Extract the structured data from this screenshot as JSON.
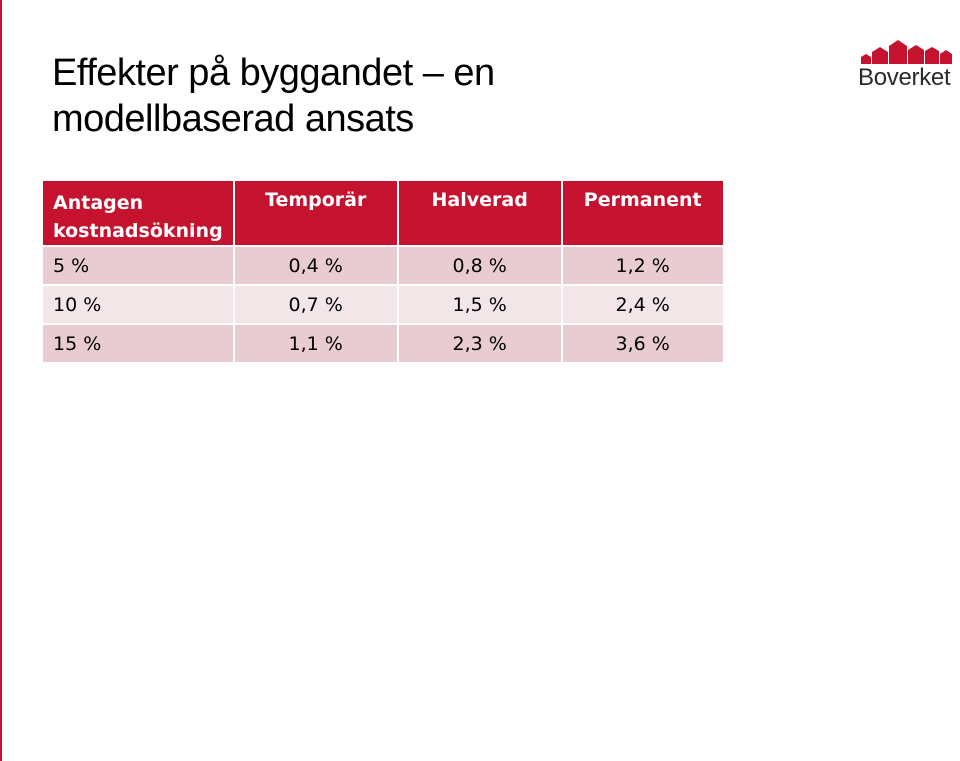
{
  "slide": {
    "title_line1": "Effekter på byggandet – en",
    "title_line2": "modellbaserad ansats",
    "accent_color": "#c4122f"
  },
  "logo": {
    "text": "Boverket",
    "icon": "house-roofs-icon",
    "color": "#c4122f"
  },
  "table": {
    "header_colors": {
      "background": "#c4122f",
      "odd_row": "#e8ccd1",
      "even_row": "#f3e6e8"
    },
    "columns": [
      {
        "label_line1": "Antagen",
        "label_line2": "kostnadsökning"
      },
      {
        "label_line1": "Temporär"
      },
      {
        "label_line1": "Halverad"
      },
      {
        "label_line1": "Permanent"
      }
    ],
    "rows": [
      [
        "5 %",
        "0,4 %",
        "0,8 %",
        "1,2 %"
      ],
      [
        "10 %",
        "0,7 %",
        "1,5 %",
        "2,4 %"
      ],
      [
        "15 %",
        "1,1 %",
        "2,3 %",
        "3,6 %"
      ]
    ]
  }
}
